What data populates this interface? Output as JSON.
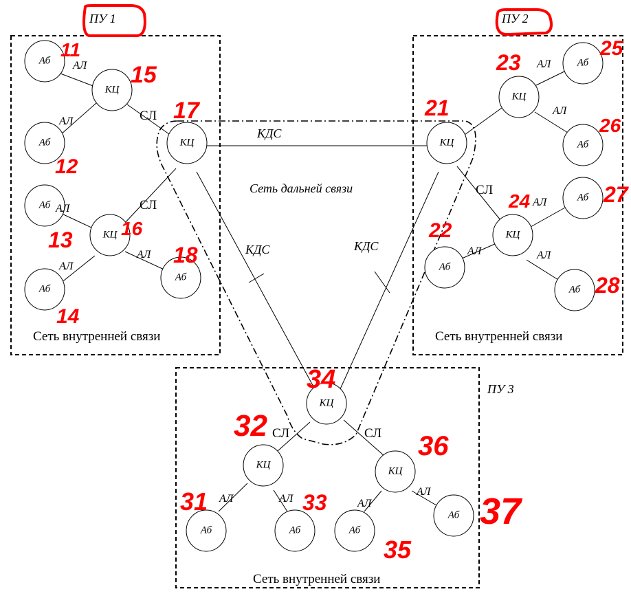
{
  "labels": {
    "subscriber": "Аб",
    "switching_center": "КЦ",
    "subscriber_line": "АЛ",
    "connecting_line": "СЛ",
    "long_distance_channel": "КДС",
    "long_distance_network": "Сеть дальней связи",
    "internal_network": "Сеть внутренней связи"
  },
  "nodes": {
    "pu1": "ПУ 1",
    "pu2": "ПУ 2",
    "pu3": "ПУ 3"
  },
  "annotations": {
    "n11": "11",
    "n12": "12",
    "n13": "13",
    "n14": "14",
    "n15": "15",
    "n16": "16",
    "n17": "17",
    "n18": "18",
    "n21": "21",
    "n22": "22",
    "n23": "23",
    "n24": "24",
    "n25": "25",
    "n26": "26",
    "n27": "27",
    "n28": "28",
    "n31": "31",
    "n32": "32",
    "n33": "33",
    "n34": "34",
    "n35": "35",
    "n36": "36",
    "n37": "37"
  },
  "colors": {
    "annotation": "#ff0000",
    "line": "#000000"
  }
}
